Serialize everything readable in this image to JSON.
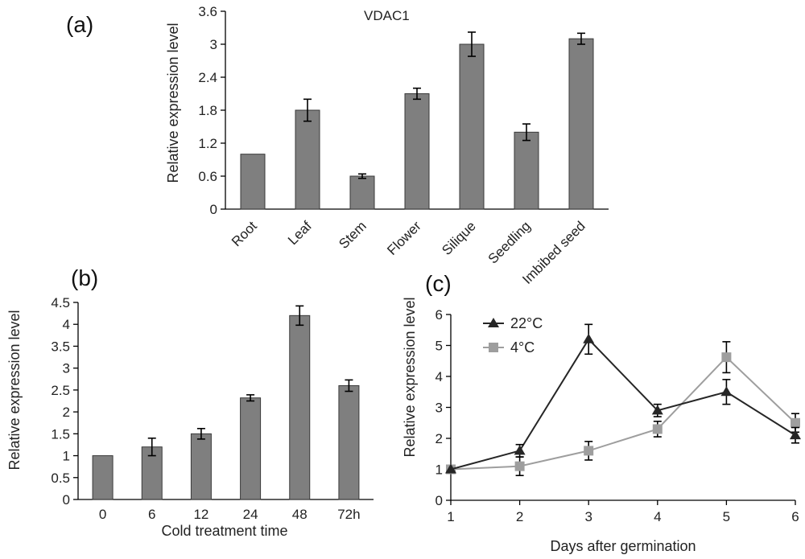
{
  "colors": {
    "bar": "#7f7f7f",
    "series_22": "#262626",
    "series_4": "#9e9e9e",
    "axis": "#000000"
  },
  "chart_data": [
    {
      "panel": "(a)",
      "type": "bar",
      "title": "VDAC1",
      "ylabel": "Relative expression level",
      "xlabel": "",
      "categories": [
        "Root",
        "Leaf",
        "Stem",
        "Flower",
        "Silique",
        "Seedling",
        "Imbibed seed"
      ],
      "values": [
        1.0,
        1.8,
        0.6,
        2.1,
        3.0,
        1.4,
        3.1
      ],
      "errors": [
        0,
        0.2,
        0.04,
        0.1,
        0.22,
        0.15,
        0.1
      ],
      "ylim": [
        0,
        3.6
      ],
      "yticks": [
        "0",
        "0.6",
        "1.2",
        "1.8",
        "2.4",
        "3",
        "3.6"
      ],
      "grid": false
    },
    {
      "panel": "(b)",
      "type": "bar",
      "title": "",
      "ylabel": "Relative expression level",
      "xlabel": "Cold treatment time",
      "categories": [
        "0",
        "6",
        "12",
        "24",
        "48",
        "72h"
      ],
      "values": [
        1.0,
        1.2,
        1.5,
        2.32,
        4.2,
        2.6
      ],
      "errors": [
        0,
        0.2,
        0.12,
        0.07,
        0.22,
        0.13
      ],
      "ylim": [
        0,
        4.5
      ],
      "yticks": [
        "0",
        "0.5",
        "1",
        "1.5",
        "2",
        "2.5",
        "3",
        "3.5",
        "4",
        "4.5"
      ],
      "grid": false
    },
    {
      "panel": "(c)",
      "type": "line",
      "title": "",
      "ylabel": "Relative expression level",
      "xlabel": "Days after germination",
      "x": [
        1,
        2,
        3,
        4,
        5,
        6
      ],
      "xticks": [
        "1",
        "2",
        "3",
        "4",
        "5",
        "6"
      ],
      "ylim": [
        0,
        6
      ],
      "yticks": [
        "0",
        "1",
        "2",
        "3",
        "4",
        "5",
        "6"
      ],
      "legend_position": "top-left",
      "grid": false,
      "series": [
        {
          "name": "22°C",
          "marker": "triangle",
          "values": [
            1.0,
            1.6,
            5.2,
            2.9,
            3.5,
            2.1
          ],
          "errors": [
            0.05,
            0.2,
            0.48,
            0.2,
            0.4,
            0.25
          ]
        },
        {
          "name": "4°C",
          "marker": "square",
          "values": [
            1.0,
            1.1,
            1.6,
            2.3,
            4.62,
            2.5
          ],
          "errors": [
            0.05,
            0.3,
            0.3,
            0.25,
            0.5,
            0.3
          ]
        }
      ]
    }
  ]
}
